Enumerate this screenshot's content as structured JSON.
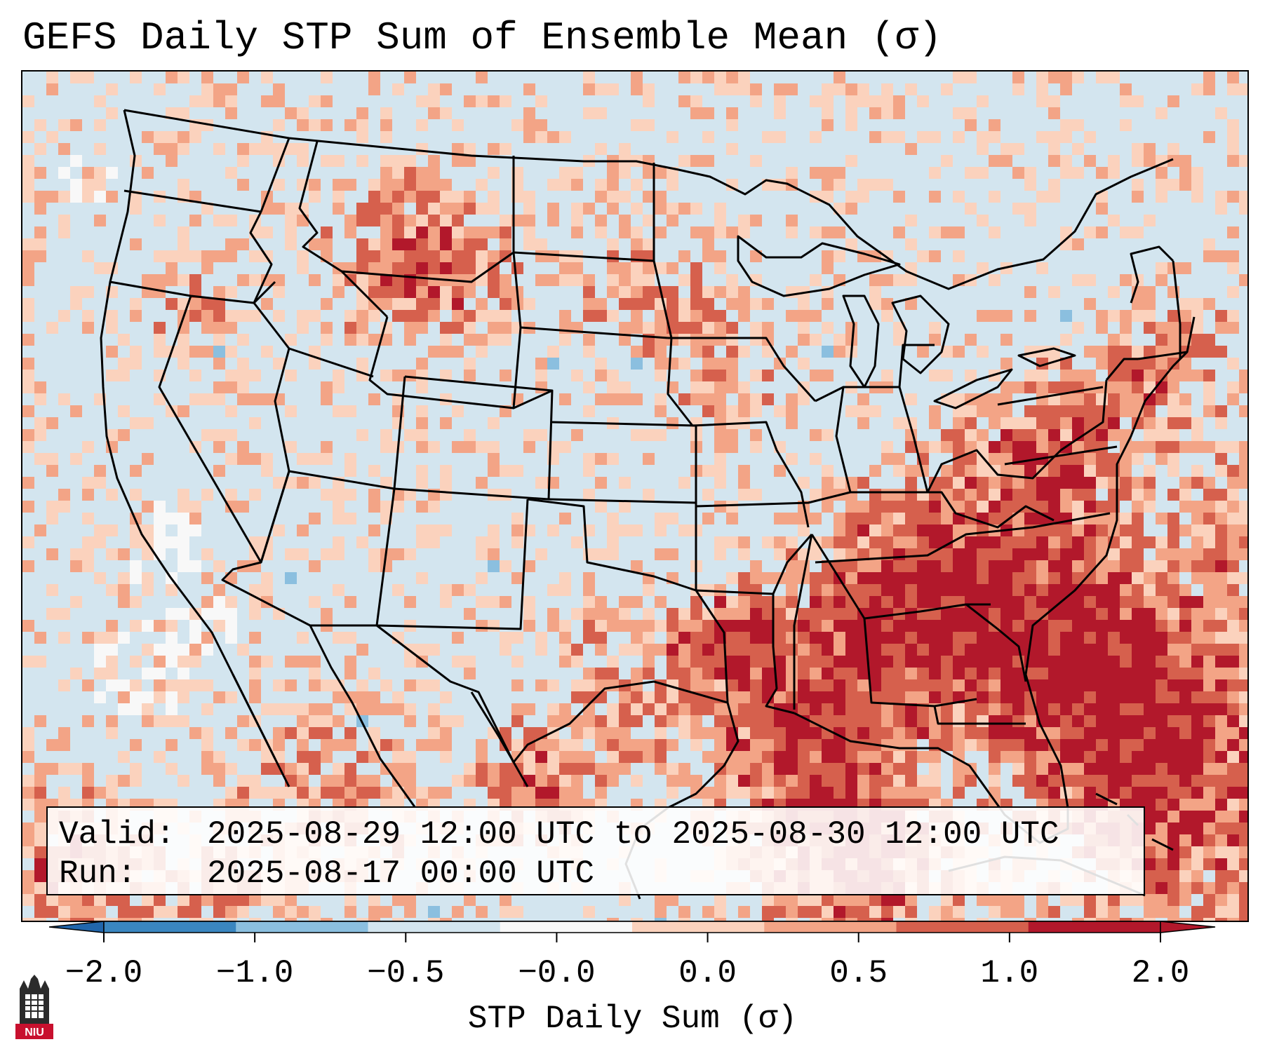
{
  "title": "GEFS Daily STP Sum of Ensemble Mean (σ)",
  "info": {
    "valid_label": "Valid:",
    "valid_value": "2025-08-29 12:00 UTC to 2025-08-30 12:00 UTC",
    "run_label": "Run:",
    "run_value": "2025-08-17 00:00 UTC"
  },
  "colorbar": {
    "label": "STP Daily Sum (σ)",
    "ticks": [
      "−2.0",
      "−1.0",
      "−0.5",
      "−0.0",
      "0.0",
      "0.5",
      "1.0",
      "2.0"
    ],
    "colors": [
      "#3a86c0",
      "#8bbfdf",
      "#d3e5ef",
      "#f8f8f8",
      "#fbd2bd",
      "#f3a486",
      "#d6604d",
      "#b2182b"
    ],
    "extend_low_color": "#2166ac",
    "extend_high_color": "#b2182b"
  },
  "logo": {
    "text": "NIU"
  }
}
